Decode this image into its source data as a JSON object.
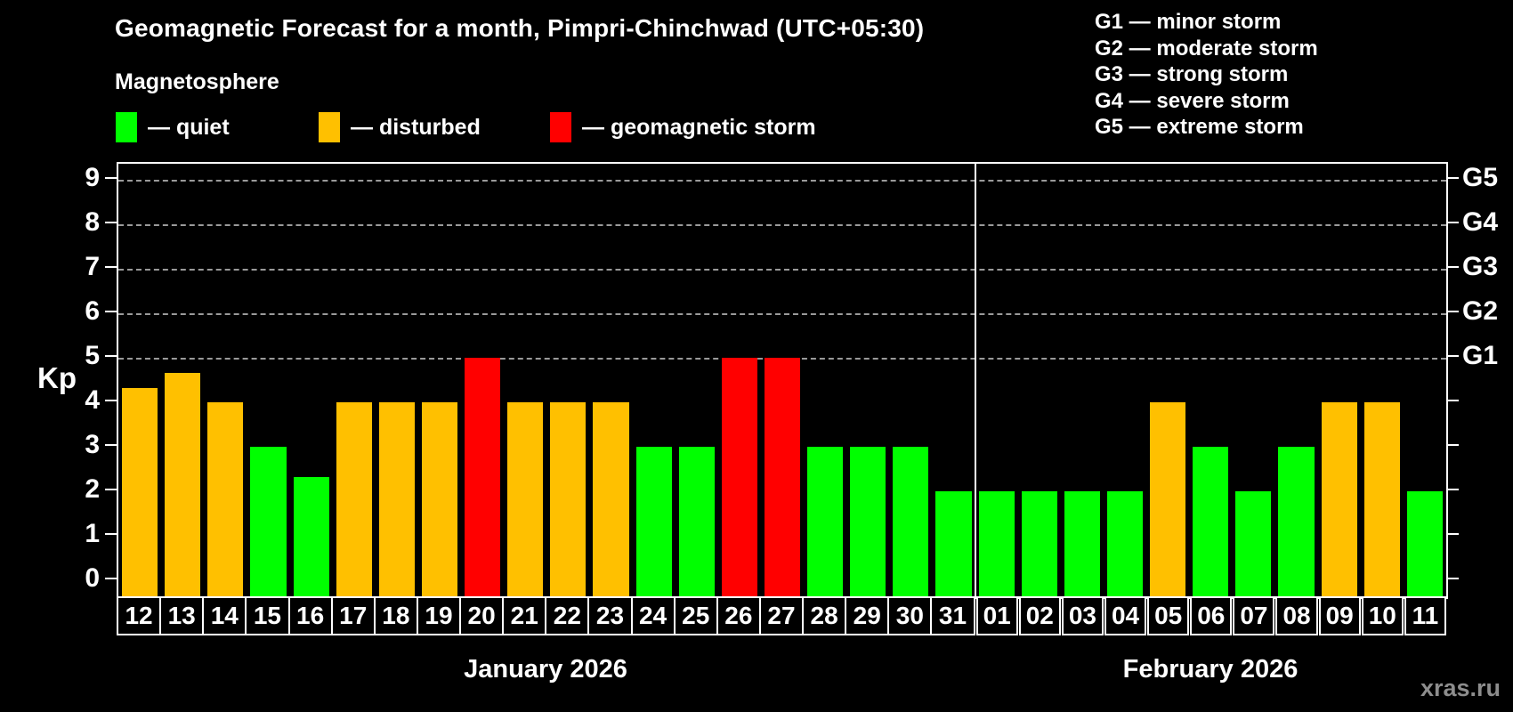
{
  "title": "Geomagnetic Forecast for a month, Pimpri-Chinchwad (UTC+05:30)",
  "watermark": "xras.ru",
  "legend": {
    "header": "Magnetosphere",
    "items": [
      {
        "key": "quiet",
        "label": "— quiet",
        "color": "#00ff00"
      },
      {
        "key": "disturbed",
        "label": "— disturbed",
        "color": "#ffc000"
      },
      {
        "key": "storm",
        "label": "— geomagnetic storm",
        "color": "#ff0000"
      }
    ]
  },
  "g_legend": [
    "G1 — minor storm",
    "G2 — moderate storm",
    "G3 — strong storm",
    "G4 — severe storm",
    "G5 — extreme storm"
  ],
  "chart_data": {
    "type": "bar",
    "ylabel": "Kp",
    "ylim": [
      0,
      9.5
    ],
    "y_ticks": [
      0,
      1,
      2,
      3,
      4,
      5,
      6,
      7,
      8,
      9
    ],
    "gridlines_kp": [
      5,
      6,
      7,
      8,
      9
    ],
    "grid": "dashed horizontal at G-storm levels only",
    "right_axis": [
      {
        "text": "G1",
        "kp": 5
      },
      {
        "text": "G2",
        "kp": 6
      },
      {
        "text": "G3",
        "kp": 7
      },
      {
        "text": "G4",
        "kp": 8
      },
      {
        "text": "G5",
        "kp": 9
      }
    ],
    "colors": {
      "quiet": "#00ff00",
      "disturbed": "#ffc000",
      "storm": "#ff0000"
    },
    "months": [
      {
        "label": "January 2026",
        "days": [
          "12",
          "13",
          "14",
          "15",
          "16",
          "17",
          "18",
          "19",
          "20",
          "21",
          "22",
          "23",
          "24",
          "25",
          "26",
          "27",
          "28",
          "29",
          "30",
          "31"
        ],
        "values": [
          4.33,
          4.67,
          4,
          3,
          2.33,
          4,
          4,
          4,
          5,
          4,
          4,
          4,
          3,
          3,
          5,
          5,
          3,
          3,
          3,
          2
        ],
        "states": [
          "disturbed",
          "disturbed",
          "disturbed",
          "quiet",
          "quiet",
          "disturbed",
          "disturbed",
          "disturbed",
          "storm",
          "disturbed",
          "disturbed",
          "disturbed",
          "quiet",
          "quiet",
          "storm",
          "storm",
          "quiet",
          "quiet",
          "quiet",
          "quiet"
        ]
      },
      {
        "label": "February 2026",
        "days": [
          "01",
          "02",
          "03",
          "04",
          "05",
          "06",
          "07",
          "08",
          "09",
          "10",
          "11"
        ],
        "values": [
          2,
          2,
          2,
          2,
          4,
          3,
          2,
          3,
          4,
          4,
          2
        ],
        "states": [
          "quiet",
          "quiet",
          "quiet",
          "quiet",
          "disturbed",
          "quiet",
          "quiet",
          "quiet",
          "disturbed",
          "disturbed",
          "quiet"
        ]
      }
    ]
  }
}
